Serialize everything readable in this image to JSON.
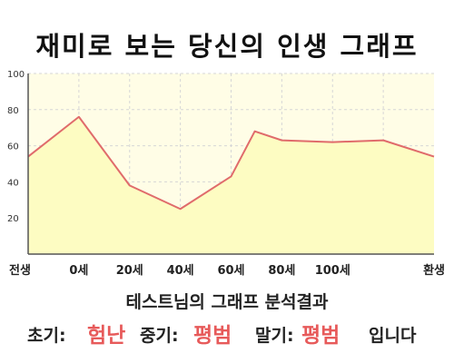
{
  "header": {
    "title": "재미로 보는 당신의 인생 그래프"
  },
  "chart_data": {
    "type": "area",
    "categories": [
      "전생",
      "0세",
      "20세",
      "40세",
      "60세",
      "80세",
      "100세",
      "환생"
    ],
    "x": [
      -15,
      0,
      15,
      30,
      45,
      52,
      60,
      75,
      90,
      105
    ],
    "values": [
      54,
      76,
      38,
      25,
      43,
      68,
      63,
      62,
      63,
      54
    ],
    "ylim": [
      0,
      100
    ],
    "yticks": [
      20,
      40,
      60,
      80,
      100
    ],
    "grid": true,
    "colors": {
      "fill": "#fdfcc2",
      "line": "#e06b6b",
      "plot_bg": "#fffde6",
      "grid": "#d6d6d6"
    }
  },
  "summary": {
    "title": "테스트님의 그래프 분석결과",
    "early_label": "초기:",
    "early_value": "험난",
    "middle_label": "중기:",
    "middle_value": "평범",
    "late_label": "말기:",
    "late_value": "평범",
    "suffix": "입니다",
    "colors": {
      "value": "#e75a5a"
    }
  }
}
